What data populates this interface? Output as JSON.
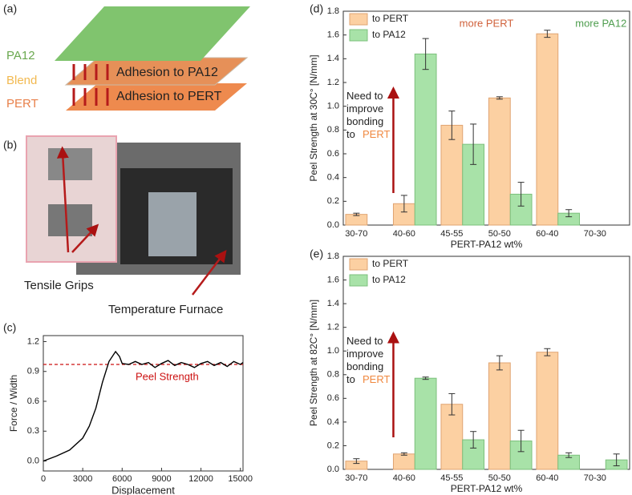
{
  "figure": {
    "panel_a": {
      "label": "(a)",
      "layers": [
        "PA12",
        "Blend",
        "PERT"
      ],
      "adhesion": [
        "Adhesion to PA12",
        "Adhesion to PERT"
      ]
    },
    "panel_b": {
      "label": "(b)",
      "callouts": [
        "Tensile Grips",
        "Temperature Furnace"
      ]
    }
  },
  "chart_data": [
    {
      "type": "line",
      "panel_label": "(c)",
      "x_label": "Displacement",
      "y_label": "Force / Width",
      "xlim": [
        0,
        15200
      ],
      "xticks": [
        0,
        3000,
        6000,
        9000,
        12000,
        15000
      ],
      "ylim": [
        -0.1,
        1.26
      ],
      "yticks": [
        {
          "value": 0,
          "label": "0.0"
        },
        0.3,
        0.6,
        0.9,
        1.2
      ],
      "x": [
        0,
        1000,
        2000,
        3000,
        3500,
        4000,
        4500,
        5000,
        5500,
        5800,
        6000,
        6500,
        7000,
        7500,
        8000,
        8500,
        9000,
        9500,
        10000,
        10500,
        11000,
        11500,
        12000,
        12500,
        13000,
        13500,
        14000,
        14500,
        15000,
        15200
      ],
      "series": [
        {
          "color": "#000000",
          "values": [
            0,
            0.05,
            0.11,
            0.23,
            0.35,
            0.53,
            0.79,
            1.0,
            1.1,
            1.05,
            0.98,
            0.97,
            1.0,
            0.97,
            0.99,
            0.94,
            0.98,
            1.01,
            0.96,
            0.99,
            0.97,
            0.94,
            0.98,
            1.0,
            0.96,
            0.99,
            0.95,
            1.0,
            0.97,
            0.99
          ]
        }
      ],
      "reference_line": {
        "value": 0.97,
        "label": "Peel Strength",
        "color": "#cc1111"
      }
    },
    {
      "type": "bar",
      "panel_label": "(d)",
      "y_label": "Peel Strength at 30C° [N/mm]",
      "x_label": "PERT-PA12 wt%",
      "categories": [
        "30-70",
        "40-60",
        "45-55",
        "50-50",
        "60-40",
        "70-30"
      ],
      "ylim": [
        0,
        1.8
      ],
      "yticks": [
        {
          "value": 0,
          "label": "0.0"
        },
        0.2,
        0.4,
        0.6,
        0.8,
        {
          "value": 1,
          "label": "1.0"
        },
        1.2,
        1.4,
        1.6,
        1.8
      ],
      "series": [
        {
          "name": "to PERT",
          "color": "#fcd0a2",
          "values": [
            0.09,
            0.18,
            0.84,
            1.07,
            1.61,
            null
          ],
          "errors": [
            0.01,
            0.07,
            0.12,
            0.01,
            0.03,
            null
          ]
        },
        {
          "name": "to PA12",
          "color": "#a8e2a8",
          "values": [
            null,
            1.44,
            0.68,
            0.26,
            0.1,
            null
          ],
          "errors": [
            null,
            0.13,
            0.17,
            0.1,
            0.03,
            null
          ]
        }
      ],
      "annotations": [
        {
          "text": "more PERT",
          "color": "#d0603a"
        },
        {
          "text": "more PA12",
          "color": "#4f9e4f"
        }
      ],
      "note": {
        "lines": [
          "Need to",
          "improve",
          "bonding",
          "to"
        ],
        "highlight": "PERT",
        "highlight_color": "#f0883f"
      }
    },
    {
      "type": "bar",
      "panel_label": "(e)",
      "y_label": "Peel Strength at 82C° [N/mm]",
      "x_label": "PERT-PA12 wt%",
      "categories": [
        "30-70",
        "40-60",
        "45-55",
        "50-50",
        "60-40",
        "70-30"
      ],
      "ylim": [
        0,
        1.8
      ],
      "yticks": [
        {
          "value": 0,
          "label": "0.0"
        },
        0.2,
        0.4,
        0.6,
        0.8,
        {
          "value": 1,
          "label": "1.0"
        },
        1.2,
        1.4,
        1.6,
        1.8
      ],
      "series": [
        {
          "name": "to PERT",
          "color": "#fcd0a2",
          "values": [
            0.07,
            0.13,
            0.55,
            0.9,
            0.99,
            null
          ],
          "errors": [
            0.02,
            0.01,
            0.09,
            0.06,
            0.03,
            null
          ]
        },
        {
          "name": "to PA12",
          "color": "#a8e2a8",
          "values": [
            null,
            0.77,
            0.25,
            0.24,
            0.12,
            0.08
          ],
          "errors": [
            null,
            0.01,
            0.07,
            0.09,
            0.02,
            0.05
          ]
        }
      ],
      "note": {
        "lines": [
          "Need to",
          "improve",
          "bonding",
          "to"
        ],
        "highlight": "PERT",
        "highlight_color": "#f0883f"
      }
    }
  ]
}
